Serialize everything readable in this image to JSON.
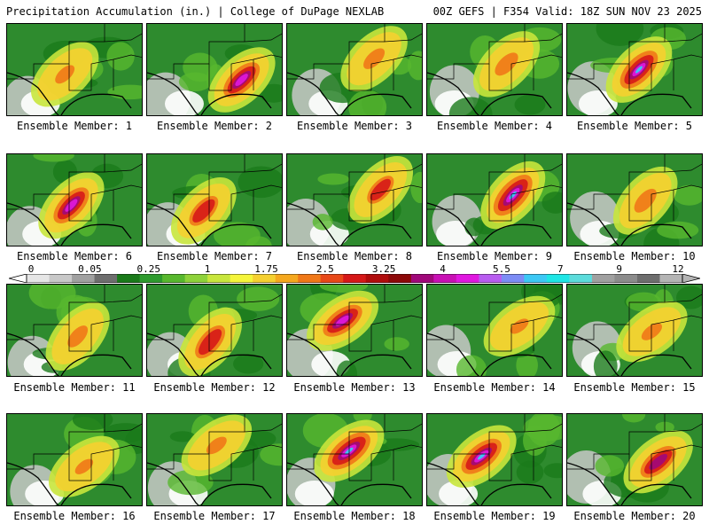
{
  "header": {
    "left": "Precipitation Accumulation (in.) | College of DuPage NEXLAB",
    "right": "00Z GEFS | F354 Valid: 18Z SUN NOV 23 2025"
  },
  "scale": {
    "labels": [
      "0",
      "0.05",
      "0.25",
      "1",
      "1.75",
      "2.5",
      "3.25",
      "4",
      "5.5",
      "7",
      "9",
      "12"
    ],
    "colors": [
      "#e6e6e6",
      "#c8c8c8",
      "#a0a0a0",
      "#6e6e6e",
      "#1a7a1a",
      "#2e9a2e",
      "#58b82e",
      "#8ed23a",
      "#c8e63c",
      "#f5f53a",
      "#f5d030",
      "#f5a81e",
      "#f07818",
      "#e84818",
      "#d61818",
      "#b00c0c",
      "#8c0808",
      "#a0087a",
      "#c810b4",
      "#e018e0",
      "#b85cf0",
      "#7c8cf5",
      "#3cc8f5",
      "#1ee6e6",
      "#5cdcdc",
      "#a0a0a0",
      "#8c8c8c",
      "#6e6e6e",
      "#b4b4b4"
    ]
  },
  "members": [
    {
      "label": "Ensemble Member: 1",
      "intensity": 0.45
    },
    {
      "label": "Ensemble Member: 2",
      "intensity": 0.85
    },
    {
      "label": "Ensemble Member: 3",
      "intensity": 0.5
    },
    {
      "label": "Ensemble Member: 4",
      "intensity": 0.55
    },
    {
      "label": "Ensemble Member: 5",
      "intensity": 0.9
    },
    {
      "label": "Ensemble Member: 6",
      "intensity": 0.85
    },
    {
      "label": "Ensemble Member: 7",
      "intensity": 0.7
    },
    {
      "label": "Ensemble Member: 8",
      "intensity": 0.65
    },
    {
      "label": "Ensemble Member: 9",
      "intensity": 0.95
    },
    {
      "label": "Ensemble Member: 10",
      "intensity": 0.55
    },
    {
      "label": "Ensemble Member: 11",
      "intensity": 0.5
    },
    {
      "label": "Ensemble Member: 12",
      "intensity": 0.75
    },
    {
      "label": "Ensemble Member: 13",
      "intensity": 0.85
    },
    {
      "label": "Ensemble Member: 14",
      "intensity": 0.4
    },
    {
      "label": "Ensemble Member: 15",
      "intensity": 0.45
    },
    {
      "label": "Ensemble Member: 16",
      "intensity": 0.4
    },
    {
      "label": "Ensemble Member: 17",
      "intensity": 0.45
    },
    {
      "label": "Ensemble Member: 18",
      "intensity": 0.95
    },
    {
      "label": "Ensemble Member: 19",
      "intensity": 0.9
    },
    {
      "label": "Ensemble Member: 20",
      "intensity": 0.8
    }
  ]
}
